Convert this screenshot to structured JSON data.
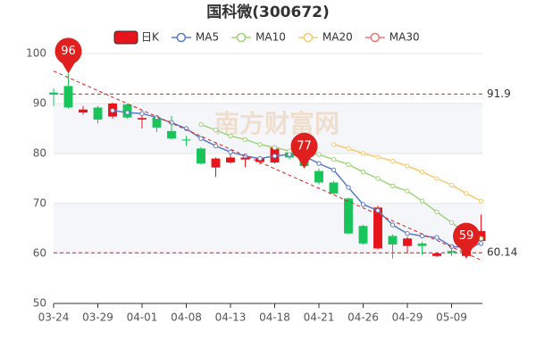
{
  "chart_data": {
    "type": "candlestick",
    "title": "国科微(300672)",
    "watermark": "南方财富网",
    "categories": [
      "03-24",
      null,
      null,
      "03-29",
      null,
      null,
      "04-01",
      null,
      null,
      "04-08",
      null,
      null,
      "04-13",
      null,
      null,
      "04-18",
      null,
      null,
      "04-21",
      null,
      null,
      "04-26",
      null,
      null,
      "04-29",
      null,
      null,
      "05-09",
      null,
      null
    ],
    "candles": {
      "name": "日K",
      "up_color": "#e8141b",
      "down_color": "#19c55b",
      "open": [
        92.2,
        93.5,
        88.2,
        89.2,
        87.4,
        89.8,
        86.8,
        87.2,
        84.5,
        82.8,
        81.0,
        77.2,
        78.2,
        78.8,
        78.3,
        78.2,
        80.2,
        79.5,
        76.5,
        74.2,
        71.0,
        65.5,
        61.0,
        63.5,
        61.5,
        62.0,
        59.5,
        60.5,
        59.5,
        62.5
      ],
      "close": [
        91.8,
        89.2,
        88.8,
        86.8,
        90.0,
        87.2,
        87.1,
        85.2,
        83.0,
        82.6,
        78.0,
        79.0,
        79.2,
        79.2,
        79.0,
        81.2,
        79.2,
        77.5,
        74.2,
        72.0,
        64.0,
        62.0,
        69.2,
        61.8,
        63.0,
        61.5,
        60.0,
        60.2,
        61.0,
        64.5
      ],
      "high": [
        93.0,
        96.0,
        89.5,
        89.5,
        90.2,
        90.0,
        88.0,
        87.6,
        87.5,
        83.5,
        81.3,
        79.2,
        80.5,
        80.0,
        79.5,
        81.5,
        80.6,
        80.0,
        77.0,
        74.5,
        71.2,
        65.7,
        69.5,
        63.8,
        63.3,
        62.3,
        60.2,
        61.0,
        61.2,
        67.8
      ],
      "low": [
        89.5,
        89.0,
        87.8,
        86.0,
        87.0,
        87.0,
        85.0,
        84.3,
        82.8,
        81.5,
        77.8,
        75.3,
        78.0,
        77.3,
        77.8,
        78.0,
        78.8,
        77.0,
        73.8,
        71.8,
        63.8,
        61.8,
        60.8,
        59.0,
        60.0,
        59.8,
        59.3,
        59.5,
        59.0,
        62.0
      ]
    },
    "series": [
      {
        "name": "MA5",
        "color": "#5b7cc6",
        "values": [
          null,
          null,
          null,
          null,
          88.6,
          88.2,
          88.0,
          87.2,
          86.2,
          85.0,
          83.0,
          81.5,
          80.3,
          79.5,
          79.0,
          79.5,
          79.8,
          79.5,
          78.0,
          76.7,
          73.2,
          69.8,
          68.6,
          65.7,
          64.0,
          63.5,
          63.2,
          61.4,
          61.2,
          62.0
        ]
      },
      {
        "name": "MA10",
        "color": "#9fd47a",
        "values": [
          null,
          null,
          null,
          null,
          null,
          null,
          null,
          null,
          null,
          null,
          85.8,
          84.7,
          83.5,
          82.8,
          81.8,
          81.2,
          80.5,
          80.0,
          79.8,
          78.8,
          77.8,
          76.3,
          75.0,
          73.5,
          72.5,
          70.5,
          68.3,
          66.2,
          64.0,
          63.0
        ]
      },
      {
        "name": "MA20",
        "color": "#f5cb6e",
        "values": [
          null,
          null,
          null,
          null,
          null,
          null,
          null,
          null,
          null,
          null,
          null,
          null,
          null,
          null,
          null,
          null,
          null,
          null,
          null,
          81.8,
          81.0,
          80.0,
          79.3,
          78.5,
          77.5,
          76.3,
          75.0,
          73.7,
          72.0,
          70.5
        ]
      },
      {
        "name": "MA30",
        "color": "#f07173",
        "values": [
          null,
          null,
          null,
          null,
          null,
          null,
          null,
          null,
          null,
          null,
          null,
          null,
          null,
          null,
          null,
          null,
          null,
          null,
          null,
          null,
          null,
          null,
          null,
          null,
          null,
          null,
          null,
          null,
          null,
          null
        ]
      }
    ],
    "ylim": [
      50,
      100
    ],
    "yticks": [
      50,
      60,
      70,
      80,
      90,
      100
    ],
    "hlines": [
      91.9,
      60.14
    ],
    "trend_line": {
      "from": [
        0,
        96.5
      ],
      "to": [
        29,
        58.7
      ]
    },
    "pins": [
      {
        "index": 1,
        "value": 96
      },
      {
        "index": 17,
        "value": 77
      },
      {
        "index": 28,
        "value": 59
      }
    ],
    "mark_color": "#e0201f"
  }
}
